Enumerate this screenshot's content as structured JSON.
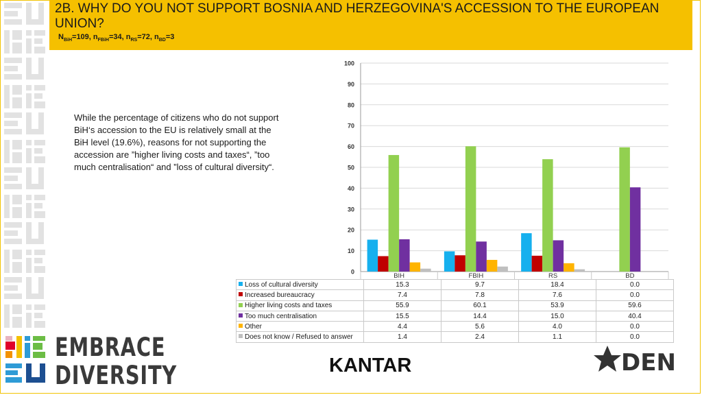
{
  "header": {
    "title": "2B. WHY DO YOU NOT SUPPORT BOSNIA AND HERZEGOVINA'S ACCESSION TO THE EUROPEAN UNION?",
    "sample": [
      {
        "n": "N",
        "sub": "BiH",
        "value": "=109,"
      },
      {
        "n": " n",
        "sub": "FBiH",
        "value": "=34,"
      },
      {
        "n": " n",
        "sub": "RS",
        "value": "=72,"
      },
      {
        "n": " n",
        "sub": "BD",
        "value": "=3"
      }
    ]
  },
  "description": "While the percentage of citizens who do not support BiH‘s accession to the EU is relatively small at the BiH level (19.6%), reasons for not supporting the accession are ”higher living costs and taxes“, ”too much centralisation“ and ”loss of cultural diversity“.",
  "logos": {
    "embrace_line1": "EMBRACE",
    "embrace_line2": "DIVERSITY",
    "kantar": "KANTAR",
    "den": "DEN"
  },
  "chart_data": {
    "type": "bar",
    "categories": [
      "BIH",
      "FBIH",
      "RS",
      "BD"
    ],
    "ylim": [
      0,
      100
    ],
    "yticks": [
      0,
      10,
      20,
      30,
      40,
      50,
      60,
      70,
      80,
      90,
      100
    ],
    "grid": true,
    "legend": "table-below",
    "series": [
      {
        "name": "Loss of cultural diversity",
        "color": "#16b0ee",
        "values": [
          15.3,
          9.7,
          18.4,
          0.0
        ],
        "labels": [
          "15.3",
          "9.7",
          "18.4",
          "0.0"
        ]
      },
      {
        "name": "Increased bureaucracy",
        "color": "#c00000",
        "values": [
          7.4,
          7.8,
          7.6,
          0.0
        ],
        "labels": [
          "7.4",
          "7.8",
          "7.6",
          "0.0"
        ]
      },
      {
        "name": "Higher living costs and taxes",
        "color": "#92d050",
        "values": [
          55.9,
          60.1,
          53.9,
          59.6
        ],
        "labels": [
          "55.9",
          "60.1",
          "53.9",
          "59.6"
        ]
      },
      {
        "name": "Too much centralisation",
        "color": "#7030a0",
        "values": [
          15.5,
          14.4,
          15.0,
          40.4
        ],
        "labels": [
          "15.5",
          "14.4",
          "15.0",
          "40.4"
        ]
      },
      {
        "name": "Other",
        "color": "#ffb400",
        "values": [
          4.4,
          5.6,
          4.0,
          0.0
        ],
        "labels": [
          "4.4",
          "5.6",
          "4.0",
          "0.0"
        ]
      },
      {
        "name": "Does not know / Refused to answer",
        "color": "#bfbfbf",
        "values": [
          1.4,
          2.4,
          1.1,
          0.0
        ],
        "labels": [
          "1.4",
          "2.4",
          "1.1",
          "0.0"
        ]
      }
    ]
  }
}
